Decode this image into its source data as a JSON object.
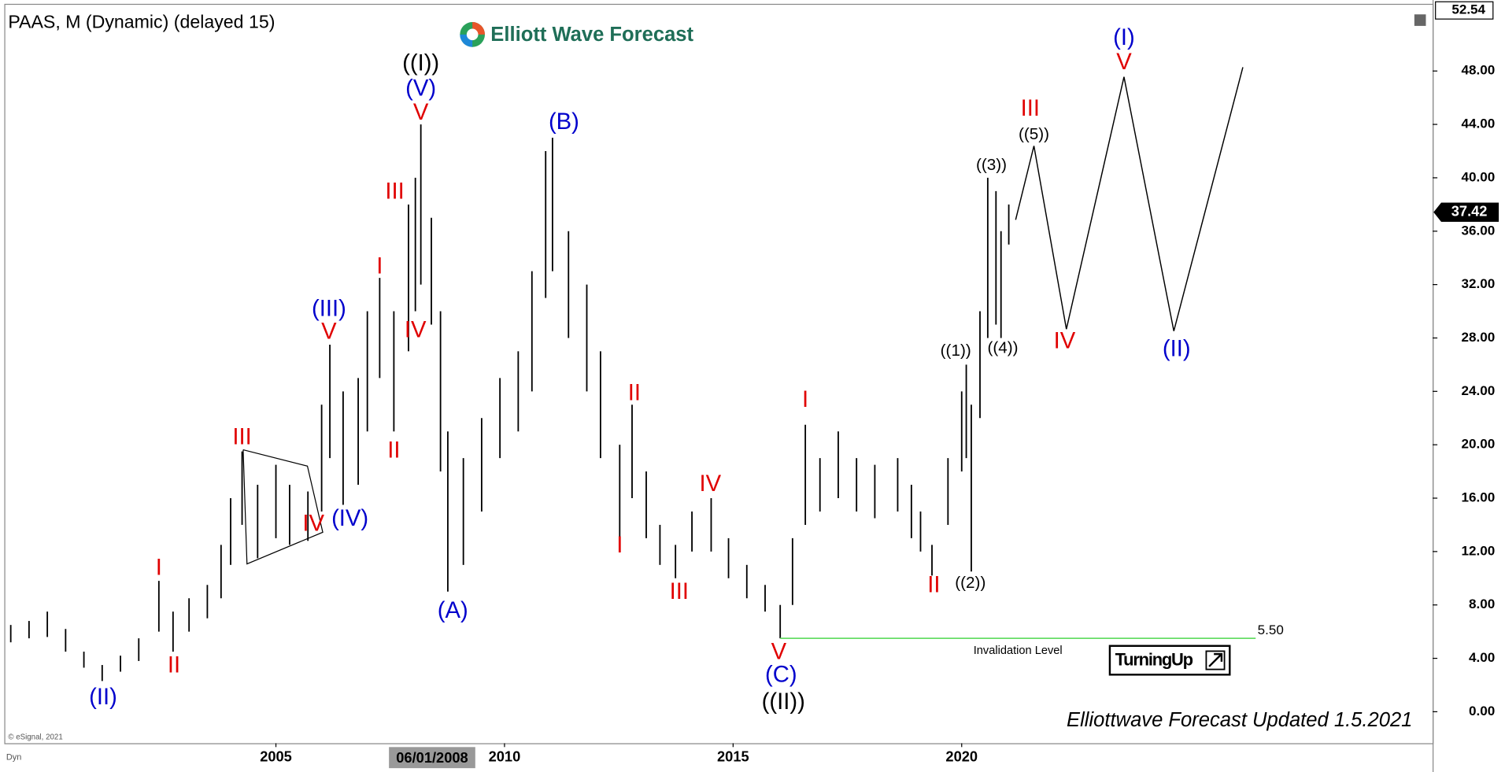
{
  "chart_data": {
    "type": "ohlc",
    "title": "PAAS, M (Dynamic) (delayed 15)",
    "logo": "Elliott Wave Forecast",
    "footer": "Elliottwave Forecast  Updated 1.5.2021",
    "copyright": "© eSignal, 2021",
    "corner_label": "Dyn",
    "cursor_date": "06/01/2008",
    "badge": "TurningUp",
    "top_price": 52.54,
    "last_price": 37.42,
    "bar_color": "#000000",
    "x": [
      1999.2,
      1999.6,
      2000.0,
      2000.4,
      2000.8,
      2001.2,
      2001.6,
      2002.0,
      2002.44,
      2002.75,
      2003.1,
      2003.5,
      2003.8,
      2004.01,
      2004.26,
      2004.6,
      2005.0,
      2005.3,
      2005.7,
      2006.0,
      2006.18,
      2006.47,
      2006.8,
      2007.0,
      2007.27,
      2007.58,
      2007.9,
      2008.05,
      2008.17,
      2008.4,
      2008.6,
      2008.76,
      2009.1,
      2009.5,
      2009.9,
      2010.3,
      2010.6,
      2010.9,
      2011.05,
      2011.4,
      2011.8,
      2012.1,
      2012.52,
      2012.79,
      2013.1,
      2013.4,
      2013.74,
      2014.1,
      2014.52,
      2014.9,
      2015.3,
      2015.7,
      2016.03,
      2016.3,
      2016.58,
      2016.9,
      2017.3,
      2017.7,
      2018.1,
      2018.6,
      2018.9,
      2019.1,
      2019.35,
      2019.7,
      2020.0,
      2020.1,
      2020.21,
      2020.4,
      2020.57,
      2020.75,
      2020.86,
      2021.03
    ],
    "high": [
      6.5,
      6.8,
      7.5,
      6.2,
      4.5,
      3.5,
      4.2,
      5.5,
      9.8,
      7.5,
      8.5,
      9.5,
      12.5,
      16,
      19.5,
      17,
      18.5,
      17,
      16.5,
      23,
      27.5,
      24,
      25,
      30,
      32.5,
      30,
      38,
      40,
      44,
      37,
      30,
      21,
      19,
      22,
      25,
      27,
      33,
      42,
      43,
      36,
      32,
      27,
      20,
      23,
      18,
      14,
      12.5,
      15,
      16,
      13,
      11,
      9.5,
      8,
      13,
      21.5,
      19,
      21,
      19,
      18.5,
      19,
      17,
      15,
      12.5,
      19,
      24,
      26,
      23,
      30,
      40,
      39,
      36,
      38
    ],
    "low": [
      5.2,
      5.5,
      5.6,
      4.5,
      3.3,
      2.3,
      3.0,
      3.8,
      6.0,
      4.5,
      6.0,
      7.0,
      8.5,
      11,
      14,
      11.5,
      13,
      12.5,
      12.8,
      15,
      19,
      15.5,
      17,
      21,
      25,
      21,
      27,
      30,
      32,
      29,
      18,
      9,
      11,
      15,
      19,
      21,
      24,
      31,
      33,
      28,
      24,
      19,
      13,
      16,
      13,
      11,
      10,
      12,
      12,
      10,
      8.5,
      7.5,
      5.5,
      8,
      14,
      15,
      16,
      15,
      14.5,
      15,
      13,
      12,
      10.2,
      14,
      18,
      19,
      10.5,
      22,
      28,
      29,
      28,
      35
    ],
    "projection": {
      "color": "#000000",
      "x": [
        2021.18,
        2021.58,
        2022.29,
        2023.55,
        2024.64,
        2026.15
      ],
      "values": [
        36.85,
        42.39,
        28.66,
        47.56,
        28.52,
        48.28
      ]
    },
    "invalidation": {
      "value": 5.5,
      "label": "5.50",
      "text": "Invalidation Level",
      "from": 2016.03,
      "to": 2026.43,
      "color": "#66dd66"
    },
    "annotations": [
      {
        "text": "((I))",
        "x": 2008.17,
        "y": 48.5,
        "color": "#000000"
      },
      {
        "text": "(V)",
        "x": 2008.17,
        "y": 46.6,
        "color": "#0000cc"
      },
      {
        "text": "V",
        "x": 2008.17,
        "y": 44.8,
        "color": "#e00000"
      },
      {
        "text": "(B)",
        "x": 2011.3,
        "y": 44.1,
        "color": "#0000cc"
      },
      {
        "text": "III",
        "x": 2007.6,
        "y": 38.9,
        "color": "#e00000"
      },
      {
        "text": "I",
        "x": 2007.27,
        "y": 33.3,
        "color": "#e00000"
      },
      {
        "text": "IV",
        "x": 2008.05,
        "y": 28.5,
        "color": "#e00000"
      },
      {
        "text": "II",
        "x": 2007.58,
        "y": 19.5,
        "color": "#e00000"
      },
      {
        "text": "(III)",
        "x": 2006.16,
        "y": 30.1,
        "color": "#0000cc"
      },
      {
        "text": "V",
        "x": 2006.16,
        "y": 28.4,
        "color": "#e00000"
      },
      {
        "text": "III",
        "x": 2004.26,
        "y": 20.5,
        "color": "#e00000"
      },
      {
        "text": "IV",
        "x": 2005.82,
        "y": 14.0,
        "color": "#e00000"
      },
      {
        "text": "(IV)",
        "x": 2006.62,
        "y": 14.4,
        "color": "#0000cc"
      },
      {
        "text": "I",
        "x": 2002.44,
        "y": 10.7,
        "color": "#e00000"
      },
      {
        "text": "II",
        "x": 2002.77,
        "y": 3.4,
        "color": "#e00000"
      },
      {
        "text": "(II)",
        "x": 2001.22,
        "y": 1.0,
        "color": "#0000cc"
      },
      {
        "text": "(A)",
        "x": 2008.87,
        "y": 7.5,
        "color": "#0000cc"
      },
      {
        "text": "II",
        "x": 2012.84,
        "y": 23.8,
        "color": "#e00000"
      },
      {
        "text": "I",
        "x": 2012.52,
        "y": 12.4,
        "color": "#e00000"
      },
      {
        "text": "IV",
        "x": 2014.5,
        "y": 17.0,
        "color": "#e00000"
      },
      {
        "text": "III",
        "x": 2013.82,
        "y": 8.9,
        "color": "#e00000"
      },
      {
        "text": "I",
        "x": 2016.58,
        "y": 23.3,
        "color": "#e00000"
      },
      {
        "text": "V",
        "x": 2016.0,
        "y": 4.4,
        "color": "#e00000"
      },
      {
        "text": "(C)",
        "x": 2016.05,
        "y": 2.7,
        "color": "#0000cc"
      },
      {
        "text": "((II))",
        "x": 2016.1,
        "y": 0.65,
        "color": "#000000"
      },
      {
        "text": "II",
        "x": 2019.39,
        "y": 9.4,
        "color": "#e00000"
      },
      {
        "text": "((2))",
        "x": 2020.19,
        "y": 9.6,
        "color": "#000000"
      },
      {
        "text": "((1))",
        "x": 2019.87,
        "y": 27.0,
        "color": "#000000"
      },
      {
        "text": "((4))",
        "x": 2020.9,
        "y": 27.2,
        "color": "#000000"
      },
      {
        "text": "((3))",
        "x": 2020.65,
        "y": 40.9,
        "color": "#000000"
      },
      {
        "text": "((5))",
        "x": 2021.58,
        "y": 43.2,
        "color": "#000000"
      },
      {
        "text": "III",
        "x": 2021.5,
        "y": 45.1,
        "color": "#e00000"
      },
      {
        "text": "IV",
        "x": 2022.25,
        "y": 27.7,
        "color": "#e00000"
      },
      {
        "text": "(II)",
        "x": 2024.7,
        "y": 27.1,
        "color": "#0000cc"
      },
      {
        "text": "V",
        "x": 2023.55,
        "y": 48.6,
        "color": "#e00000"
      },
      {
        "text": "(I)",
        "x": 2023.55,
        "y": 50.4,
        "color": "#0000cc"
      }
    ],
    "xlim": [
      1999.08,
      2030.3
    ],
    "xticks": [
      2005,
      2010,
      2015,
      2020
    ],
    "ylim": [
      -2.36,
      52.96
    ],
    "yticks": [
      {
        "value": 0,
        "label": "0.00"
      },
      {
        "value": 4,
        "label": "4.00"
      },
      {
        "value": 8,
        "label": "8.00"
      },
      {
        "value": 12,
        "label": "12.00"
      },
      {
        "value": 16,
        "label": "16.00"
      },
      {
        "value": 20,
        "label": "20.00"
      },
      {
        "value": 24,
        "label": "24.00"
      },
      {
        "value": 28,
        "label": "28.00"
      },
      {
        "value": 32,
        "label": "32.00"
      },
      {
        "value": 36,
        "label": "36.00"
      },
      {
        "value": 40,
        "label": "40.00"
      },
      {
        "value": 44,
        "label": "44.00"
      },
      {
        "value": 48,
        "label": "48.00"
      }
    ]
  }
}
